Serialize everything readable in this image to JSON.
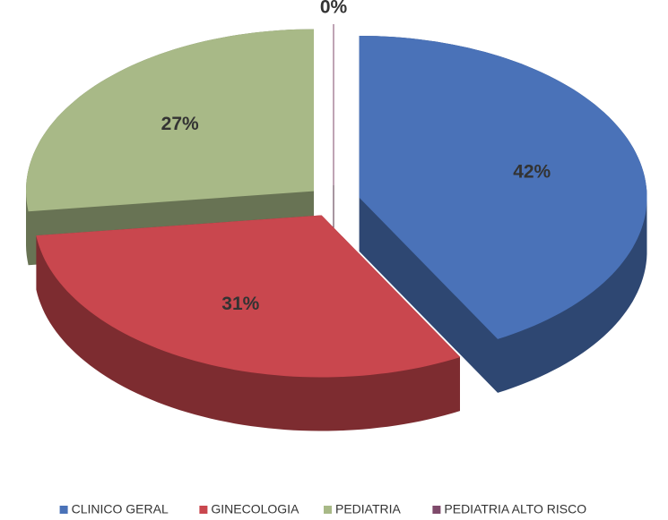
{
  "chart_data": {
    "type": "pie",
    "categories": [
      "CLINICO GERAL",
      "GINECOLOGIA",
      "PEDIATRIA",
      "PEDIATRIA ALTO RISCO"
    ],
    "values": [
      42,
      31,
      27,
      0
    ],
    "value_labels": [
      "42%",
      "31%",
      "27%",
      "0%"
    ],
    "colors": [
      "#4a72b8",
      "#c9474e",
      "#a8b987",
      "#7f4a6b"
    ],
    "legend": "bottom"
  }
}
